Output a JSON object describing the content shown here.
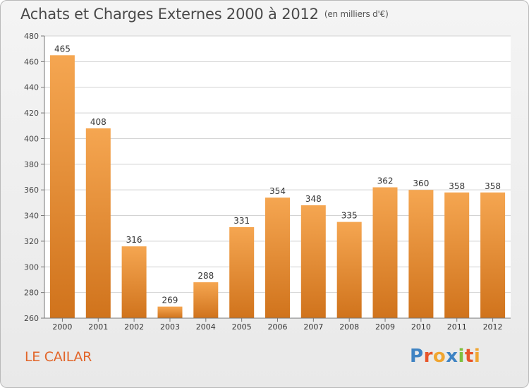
{
  "header": {
    "title": "Achats et Charges Externes 2000 à 2012",
    "unit": "(en milliers d'€)"
  },
  "footer": {
    "commune": "LE CAILAR",
    "logo_letters": [
      "P",
      "r",
      "o",
      "x",
      "i",
      "t",
      "i"
    ],
    "logo_colors": [
      "#3f83c3",
      "#e8552a",
      "#f0a531",
      "#3f83c3",
      "#7fbf3f",
      "#e8552a",
      "#f0a531"
    ]
  },
  "colors": {
    "bar_top": "#f5a651",
    "bar_bottom": "#d0731c",
    "grid": "#d3d3d3",
    "axis": "#777777"
  },
  "chart_data": {
    "type": "bar",
    "title": "Achats et Charges Externes 2000 à 2012",
    "xlabel": "",
    "ylabel": "",
    "categories": [
      "2000",
      "2001",
      "2002",
      "2003",
      "2004",
      "2005",
      "2006",
      "2007",
      "2008",
      "2009",
      "2010",
      "2011",
      "2012"
    ],
    "values": [
      465,
      408,
      316,
      269,
      288,
      331,
      354,
      348,
      335,
      362,
      360,
      358,
      358
    ],
    "ylim": [
      260,
      480
    ],
    "yticks": [
      260,
      280,
      300,
      320,
      340,
      360,
      380,
      400,
      420,
      440,
      460,
      480
    ],
    "grid": true,
    "data_labels": true
  }
}
